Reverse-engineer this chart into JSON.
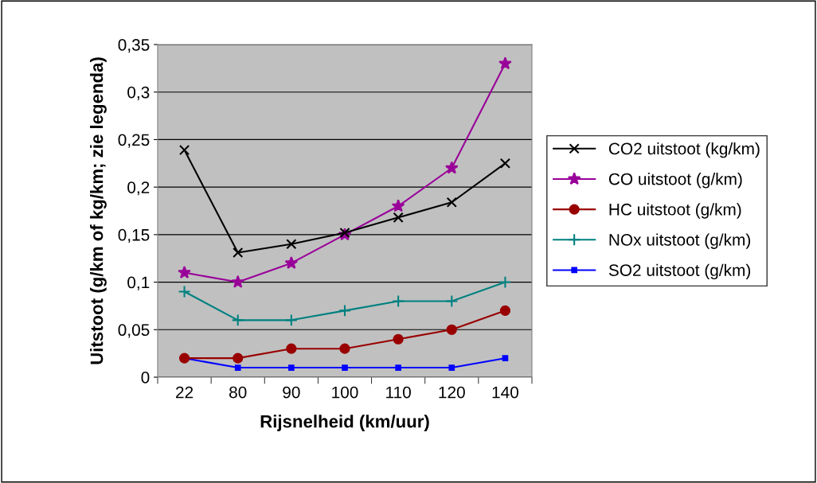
{
  "chart_data": {
    "type": "line",
    "xlabel": "Rijsnelheid (km/uur)",
    "ylabel": "Uitstoot (g/km of kg/km; zie legenda)",
    "categories": [
      "22",
      "80",
      "90",
      "100",
      "110",
      "120",
      "140"
    ],
    "series": [
      {
        "name": "CO2 uitstoot (kg/km)",
        "color": "#000000",
        "marker": "cross",
        "values": [
          0.239,
          0.131,
          0.14,
          0.152,
          0.168,
          0.184,
          0.225
        ]
      },
      {
        "name": "CO uitstoot (g/km)",
        "color": "#990099",
        "marker": "star",
        "values": [
          0.11,
          0.1,
          0.12,
          0.15,
          0.18,
          0.22,
          0.33
        ]
      },
      {
        "name": "HC uitstoot (g/km)",
        "color": "#990000",
        "marker": "circle",
        "values": [
          0.02,
          0.02,
          0.03,
          0.03,
          0.04,
          0.05,
          0.07
        ]
      },
      {
        "name": "NOx uitstoot (g/km)",
        "color": "#008080",
        "marker": "plus",
        "values": [
          0.09,
          0.06,
          0.06,
          0.07,
          0.08,
          0.08,
          0.1
        ]
      },
      {
        "name": "SO2 uitstoot (g/km)",
        "color": "#0000ff",
        "marker": "square",
        "values": [
          0.02,
          0.01,
          0.01,
          0.01,
          0.01,
          0.01,
          0.02
        ]
      }
    ],
    "ylim": [
      0,
      0.35
    ],
    "yticks": [
      0,
      {
        "value": 0.05,
        "label": "0,05"
      },
      {
        "value": 0.1,
        "label": "0,1"
      },
      {
        "value": 0.15,
        "label": "0,15"
      },
      {
        "value": 0.2,
        "label": "0,2"
      },
      {
        "value": 0.25,
        "label": "0,25"
      },
      {
        "value": 0.3,
        "label": "0,3"
      },
      {
        "value": 0.35,
        "label": "0,35"
      }
    ],
    "grid": "y",
    "legend": "right",
    "line_style": "solid"
  }
}
